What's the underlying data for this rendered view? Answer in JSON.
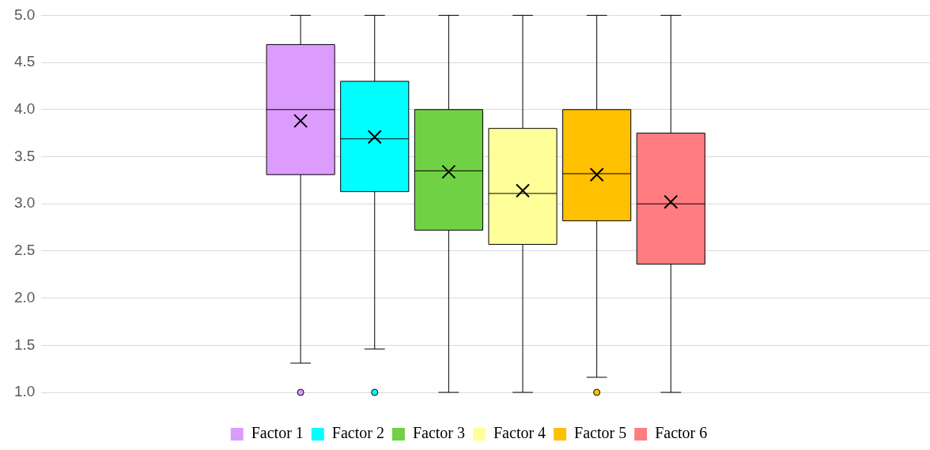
{
  "chart_data": {
    "type": "box",
    "categories": [
      null
    ],
    "series": [
      {
        "name": "Factor 1",
        "color": "#dc9cfe",
        "boxes": [
          {
            "low": 1.31,
            "q1": 3.31,
            "median": 4.0,
            "q3": 4.69,
            "high": 5.0,
            "mean": 3.88,
            "outliers": [
              1.0
            ]
          }
        ]
      },
      {
        "name": "Factor 2",
        "color": "#00ffff",
        "boxes": [
          {
            "low": 1.46,
            "q1": 3.13,
            "median": 3.69,
            "q3": 4.3,
            "high": 5.0,
            "mean": 3.71,
            "outliers": [
              1.0
            ]
          }
        ]
      },
      {
        "name": "Factor 3",
        "color": "#6fd143",
        "boxes": [
          {
            "low": 1.0,
            "q1": 2.72,
            "median": 3.35,
            "q3": 4.0,
            "high": 5.0,
            "mean": 3.34
          }
        ]
      },
      {
        "name": "Factor 4",
        "color": "#ffff99",
        "boxes": [
          {
            "low": 1.0,
            "q1": 2.57,
            "median": 3.11,
            "q3": 3.8,
            "high": 5.0,
            "mean": 3.14
          }
        ]
      },
      {
        "name": "Factor 5",
        "color": "#ffc000",
        "boxes": [
          {
            "low": 1.16,
            "q1": 2.82,
            "median": 3.32,
            "q3": 4.0,
            "high": 5.0,
            "mean": 3.31,
            "outliers": [
              1.0
            ]
          }
        ]
      },
      {
        "name": "Factor 6",
        "color": "#ff7c80",
        "boxes": [
          {
            "low": 1.0,
            "q1": 2.36,
            "median": 3.0,
            "q3": 3.75,
            "high": 5.0,
            "mean": 3.02
          }
        ]
      }
    ],
    "ylim": [
      1.0,
      5.0
    ],
    "yticks": [
      {
        "value": 1,
        "label": "1.0"
      },
      {
        "value": 1.5,
        "label": "1.5"
      },
      {
        "value": 2,
        "label": "2.0"
      },
      {
        "value": 2.5,
        "label": "2.5"
      },
      {
        "value": 3,
        "label": "3.0"
      },
      {
        "value": 3.5,
        "label": "3.5"
      },
      {
        "value": 4,
        "label": "4.0"
      },
      {
        "value": 4.5,
        "label": "4.5"
      },
      {
        "value": 5,
        "label": "5.0"
      }
    ],
    "grid": "y",
    "legend": "bottom",
    "tick_labels": "y"
  }
}
